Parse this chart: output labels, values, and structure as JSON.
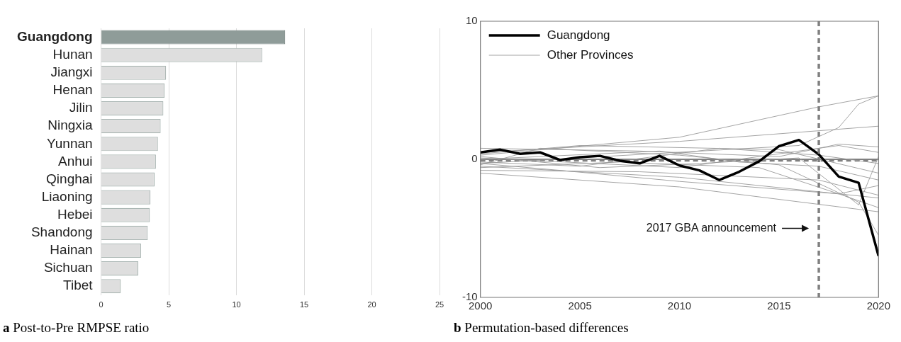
{
  "chart_data": [
    {
      "type": "bar",
      "orientation": "horizontal",
      "title": "a Post-to-Pre RMPSE ratio",
      "categories": [
        "Guangdong",
        "Hunan",
        "Jiangxi",
        "Henan",
        "Jilin",
        "Ningxia",
        "Yunnan",
        "Anhui",
        "Qinghai",
        "Liaoning",
        "Hebei",
        "Shandong",
        "Hainan",
        "Sichuan",
        "Tibet"
      ],
      "values": [
        13.6,
        11.9,
        4.8,
        4.7,
        4.6,
        4.4,
        4.2,
        4.05,
        3.95,
        3.65,
        3.6,
        3.45,
        2.95,
        2.75,
        1.45
      ],
      "colors": [
        "#8f9c99",
        "#dedede",
        "#dedede",
        "#dedede",
        "#dedede",
        "#dedede",
        "#dedede",
        "#dedede",
        "#dedede",
        "#dedede",
        "#dedede",
        "#dedede",
        "#dedede",
        "#dedede",
        "#dedede"
      ],
      "xlim": [
        0,
        25
      ],
      "xticks": [
        0,
        5,
        10,
        15,
        20,
        25
      ],
      "grid": "x",
      "legend": false
    },
    {
      "type": "line",
      "title": "b Permutation-based differences",
      "xlim": [
        2000,
        2020
      ],
      "xticks": [
        2000,
        2005,
        2010,
        2015,
        2020
      ],
      "ylim": [
        -10,
        10
      ],
      "yticks": [
        -10,
        0,
        10
      ],
      "grid": false,
      "legend": "top left",
      "marker": "none",
      "ref_lines": [
        {
          "axis": "y",
          "value": 0,
          "color": "#808080",
          "line_style": "solid"
        },
        {
          "axis": "y",
          "value": -0.1,
          "color": "#808080",
          "line_style": "dashed"
        },
        {
          "axis": "x",
          "value": 2017,
          "color": "#808080",
          "line_style": "dashed"
        }
      ],
      "annotations": [
        "2017 GBA announcement"
      ],
      "series": [
        {
          "name": "Other Provinces",
          "color": "#9a9a9a",
          "x": [
            2000,
            2010,
            2017,
            2020
          ],
          "values": [
            0.3,
            1.6,
            3.8,
            4.6
          ]
        },
        {
          "color": "#9a9a9a",
          "x": [
            2000,
            2016,
            2018,
            2019,
            2020
          ],
          "values": [
            -0.3,
            1.0,
            2.3,
            4.0,
            4.6
          ]
        },
        {
          "color": "#9a9a9a",
          "x": [
            2000,
            2010,
            2020
          ],
          "values": [
            0.5,
            1.3,
            2.4
          ]
        },
        {
          "color": "#9a9a9a",
          "x": [
            2000,
            2008,
            2015,
            2018,
            2020
          ],
          "values": [
            0.8,
            0.6,
            0.2,
            1.1,
            0.9
          ]
        },
        {
          "color": "#9a9a9a",
          "x": [
            2000,
            2005,
            2012,
            2017,
            2020
          ],
          "values": [
            -0.2,
            -0.5,
            0.8,
            0.3,
            -0.3
          ]
        },
        {
          "color": "#9a9a9a",
          "x": [
            2000,
            2010,
            2020
          ],
          "values": [
            -0.5,
            -1.3,
            -2.8
          ]
        },
        {
          "color": "#9a9a9a",
          "x": [
            2000,
            2010,
            2020
          ],
          "values": [
            -1.0,
            -2.0,
            -3.8
          ]
        },
        {
          "color": "#9a9a9a",
          "x": [
            2000,
            2004,
            2010,
            2018,
            2020
          ],
          "values": [
            -0.3,
            -0.8,
            -1.6,
            -2.5,
            -3.5
          ]
        },
        {
          "color": "#9a9a9a",
          "x": [
            2000,
            2006,
            2011,
            2016,
            2019,
            2020
          ],
          "values": [
            0.2,
            -0.6,
            -0.3,
            0.1,
            -3.3,
            0.2
          ]
        },
        {
          "color": "#9a9a9a",
          "x": [
            2000,
            2009,
            2013,
            2017,
            2020
          ],
          "values": [
            0.0,
            0.6,
            -0.2,
            -0.5,
            -1.5
          ]
        },
        {
          "color": "#9a9a9a",
          "x": [
            2000,
            2007,
            2014,
            2018,
            2020
          ],
          "values": [
            -0.6,
            -0.2,
            -0.6,
            -2.5,
            -1.9
          ]
        },
        {
          "color": "#9a9a9a",
          "x": [
            2000,
            2003,
            2010,
            2015,
            2019,
            2020
          ],
          "values": [
            -0.4,
            0.8,
            0.3,
            -0.4,
            -3.1,
            -5.5
          ]
        },
        {
          "color": "#9a9a9a",
          "x": [
            2000,
            2010,
            2018,
            2020
          ],
          "values": [
            0.1,
            -0.6,
            1.0,
            0.5
          ]
        },
        {
          "color": "#9a9a9a",
          "x": [
            2000,
            2005,
            2015,
            2020
          ],
          "values": [
            0.4,
            1.0,
            0.7,
            -1.0
          ]
        },
        {
          "color": "#9a9a9a",
          "x": [
            2000,
            2008,
            2017,
            2020
          ],
          "values": [
            -0.8,
            -0.9,
            -1.5,
            -2.6
          ]
        },
        {
          "name": "Guangdong",
          "color": "#000000",
          "x": [
            2000,
            2001,
            2002,
            2003,
            2004,
            2005,
            2006,
            2007,
            2008,
            2009,
            2010,
            2011,
            2012,
            2013,
            2014,
            2015,
            2016,
            2017,
            2018,
            2019,
            2020
          ],
          "values": [
            0.5,
            0.7,
            0.4,
            0.5,
            -0.05,
            0.15,
            0.25,
            -0.1,
            -0.3,
            0.25,
            -0.45,
            -0.8,
            -1.5,
            -0.9,
            -0.15,
            0.95,
            1.4,
            0.35,
            -1.25,
            -1.7,
            -7.0
          ]
        }
      ]
    }
  ]
}
